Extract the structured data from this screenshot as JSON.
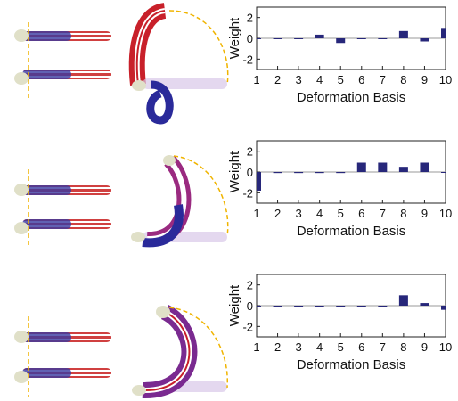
{
  "chart_data": [
    {
      "type": "bar",
      "categories": [
        "1",
        "2",
        "3",
        "4",
        "5",
        "6",
        "7",
        "8",
        "9",
        "10"
      ],
      "values": [
        0,
        0,
        0,
        0.35,
        -0.45,
        0,
        0,
        0.7,
        -0.3,
        1.0
      ],
      "xlabel": "Deformation Basis",
      "ylabel": "Weight",
      "ylim": [
        -3,
        3
      ],
      "yticks": [
        "2",
        "0",
        "-2"
      ],
      "bar_color": "#27277a"
    },
    {
      "type": "bar",
      "categories": [
        "1",
        "2",
        "3",
        "4",
        "5",
        "6",
        "7",
        "8",
        "9",
        "10"
      ],
      "values": [
        -1.8,
        -0.1,
        -0.1,
        -0.1,
        -0.1,
        0.9,
        0.9,
        0.5,
        0.9,
        0
      ],
      "xlabel": "Deformation Basis",
      "ylabel": "Weight",
      "ylim": [
        -3,
        3
      ],
      "yticks": [
        "2",
        "0",
        "-2"
      ],
      "bar_color": "#27277a"
    },
    {
      "type": "bar",
      "categories": [
        "1",
        "2",
        "3",
        "4",
        "5",
        "6",
        "7",
        "8",
        "9",
        "10"
      ],
      "values": [
        0,
        0,
        0,
        0,
        0,
        0,
        0,
        1.0,
        0.25,
        -0.4
      ],
      "xlabel": "Deformation Basis",
      "ylabel": "Weight",
      "ylim": [
        -3,
        3
      ],
      "yticks": [
        "2",
        "0",
        "-2"
      ],
      "bar_color": "#27277a"
    }
  ],
  "colors": {
    "bar": "#27277a",
    "tube_red": "#c8202a",
    "tube_blue": "#2a2a9a",
    "guide_dash": "#f0b400",
    "zero_line": "#999999"
  }
}
